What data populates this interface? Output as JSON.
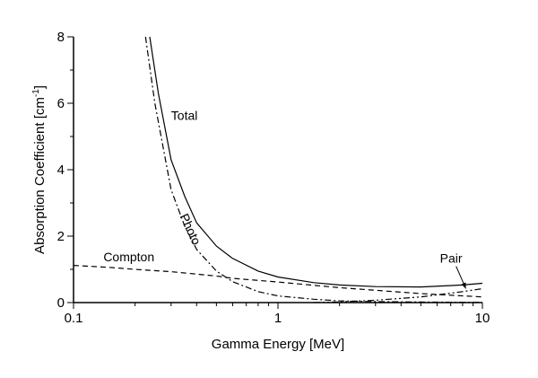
{
  "chart_data": {
    "type": "line",
    "title": "",
    "xlabel": "Gamma Energy [MeV]",
    "ylabel": "Absorption Coefficient [cm",
    "ylabel_sup": "-1",
    "ylabel_end": "]",
    "x_scale": "log",
    "xlim": [
      0.1,
      10
    ],
    "ylim": [
      0,
      8
    ],
    "x_ticks": [
      "0.1",
      "1",
      "10"
    ],
    "y_ticks": [
      "0",
      "2",
      "4",
      "6",
      "8"
    ],
    "grid": false,
    "series": [
      {
        "name": "Total",
        "style": "solid",
        "x": [
          0.236,
          0.26,
          0.3,
          0.35,
          0.4,
          0.5,
          0.6,
          0.8,
          1,
          1.5,
          2,
          3,
          5,
          8,
          10
        ],
        "y": [
          8,
          6.3,
          4.3,
          3.2,
          2.4,
          1.7,
          1.33,
          0.95,
          0.77,
          0.6,
          0.53,
          0.48,
          0.47,
          0.53,
          0.58
        ]
      },
      {
        "name": "Photo",
        "style": "dashdot",
        "x": [
          0.225,
          0.25,
          0.3,
          0.35,
          0.4,
          0.5,
          0.6,
          0.8,
          1,
          1.5,
          2,
          3,
          5,
          10
        ],
        "y": [
          8,
          6.0,
          3.4,
          2.3,
          1.6,
          0.95,
          0.63,
          0.33,
          0.2,
          0.1,
          0.05,
          0.03,
          0.015,
          0.005
        ]
      },
      {
        "name": "Compton",
        "style": "dashed",
        "x": [
          0.1,
          0.15,
          0.2,
          0.3,
          0.5,
          0.6,
          1,
          2,
          3,
          5,
          10
        ],
        "y": [
          1.12,
          1.06,
          1.0,
          0.93,
          0.8,
          0.73,
          0.62,
          0.45,
          0.37,
          0.27,
          0.17
        ]
      },
      {
        "name": "Pair",
        "style": "dashdotdot",
        "x": [
          1.5,
          2,
          3,
          5,
          8,
          10
        ],
        "y": [
          0,
          0.02,
          0.07,
          0.17,
          0.33,
          0.42
        ]
      }
    ],
    "annotations": [
      {
        "text": "Total",
        "x": 0.3,
        "y": 5.5
      },
      {
        "text": "Photo",
        "x": 0.33,
        "y": 2.6,
        "rotated": true
      },
      {
        "text": "Compton",
        "x": 0.14,
        "y": 1.25
      },
      {
        "text": "Pair",
        "x": 6.2,
        "y": 1.2,
        "arrow_to": [
          8.3,
          0.42
        ]
      }
    ]
  }
}
